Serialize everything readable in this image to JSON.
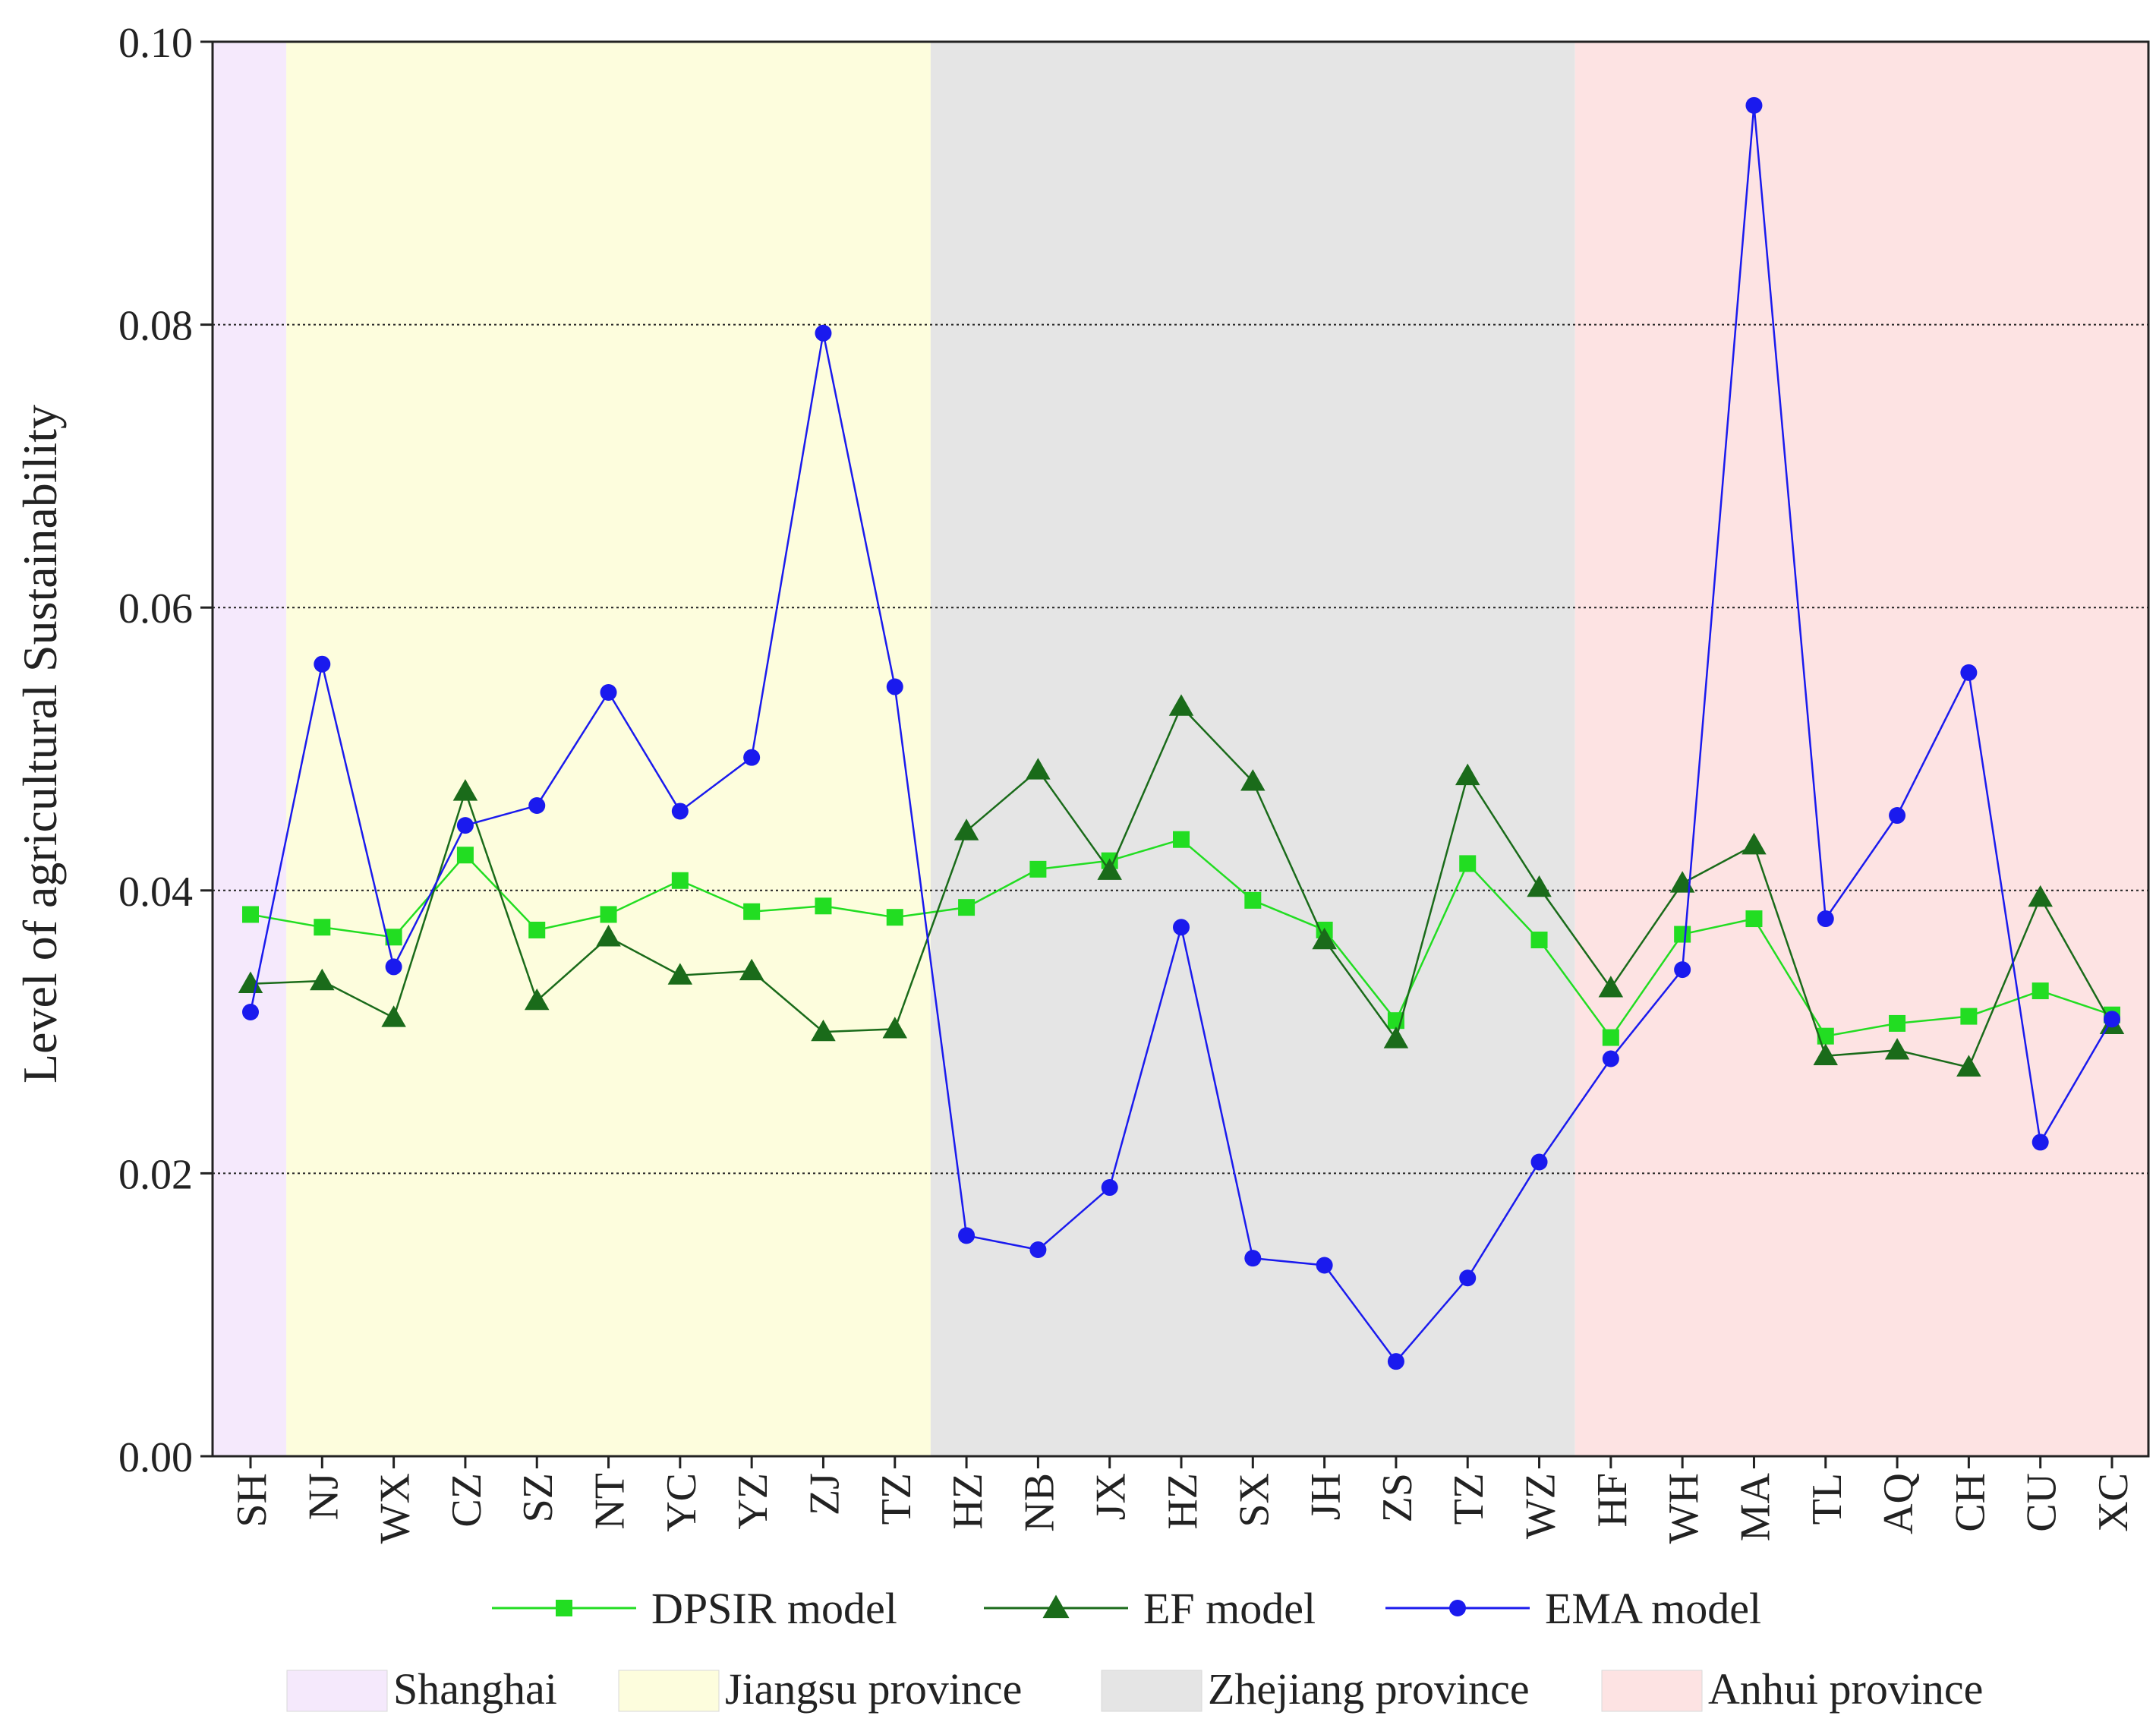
{
  "chart_data": {
    "type": "line",
    "ylabel": "Level of agricultural Sustainability",
    "xlabel": "",
    "ylim": [
      0,
      0.1
    ],
    "yticks": [
      0,
      0.02,
      0.04,
      0.06,
      0.08,
      0.1
    ],
    "ytick_labels": [
      "0.00",
      "0.02",
      "0.04",
      "0.06",
      "0.08",
      "0.10"
    ],
    "grid": "horizontal dotted",
    "categories": [
      "SH",
      "NJ",
      "WX",
      "CZ",
      "SZ",
      "NT",
      "YC",
      "YZ",
      "ZJ",
      "TZ",
      "HZ",
      "NB",
      "JX",
      "HZ",
      "SX",
      "JH",
      "ZS",
      "TZ",
      "WZ",
      "HF",
      "WH",
      "MA",
      "TL",
      "AQ",
      "CH",
      "CU",
      "XC"
    ],
    "series": [
      {
        "name": "DPSIR model",
        "color": "#22dd22",
        "marker": "square",
        "values": [
          0.0383,
          0.0374,
          0.0367,
          0.0425,
          0.0372,
          0.0383,
          0.0407,
          0.0385,
          0.0389,
          0.0381,
          0.0388,
          0.0415,
          0.0421,
          0.0436,
          0.0393,
          0.0372,
          0.0308,
          0.0419,
          0.0365,
          0.0296,
          0.0369,
          0.038,
          0.0297,
          0.0306,
          0.0311,
          0.0329,
          0.0312
        ]
      },
      {
        "name": "EF model",
        "color": "#1a6b1a",
        "marker": "triangle",
        "values": [
          0.0334,
          0.0336,
          0.031,
          0.047,
          0.0322,
          0.0367,
          0.034,
          0.0343,
          0.03,
          0.0302,
          0.0442,
          0.0485,
          0.0414,
          0.053,
          0.0477,
          0.0365,
          0.0295,
          0.0481,
          0.0402,
          0.0331,
          0.0405,
          0.0432,
          0.0283,
          0.0287,
          0.0275,
          0.0395,
          0.0305
        ]
      },
      {
        "name": "EMA model",
        "color": "#1a1aee",
        "marker": "circle",
        "values": [
          0.0314,
          0.056,
          0.0346,
          0.0446,
          0.046,
          0.054,
          0.0456,
          0.0494,
          0.0794,
          0.0544,
          0.0156,
          0.0146,
          0.019,
          0.0374,
          0.014,
          0.0135,
          0.0067,
          0.0126,
          0.0208,
          0.0281,
          0.0344,
          0.0955,
          0.038,
          0.0453,
          0.0554,
          0.0222,
          0.0309
        ]
      }
    ],
    "regions": [
      {
        "name": "Shanghai",
        "color": "#f5e9fc",
        "first": 0,
        "last": 0
      },
      {
        "name": "Jiangsu province",
        "color": "#fdfddd",
        "first": 1,
        "last": 9
      },
      {
        "name": "Zhejiang province",
        "color": "#e5e5e5",
        "first": 10,
        "last": 18
      },
      {
        "name": "Anhui province",
        "color": "#fde3e3",
        "first": 19,
        "last": 26
      }
    ],
    "legend_position": "bottom"
  }
}
